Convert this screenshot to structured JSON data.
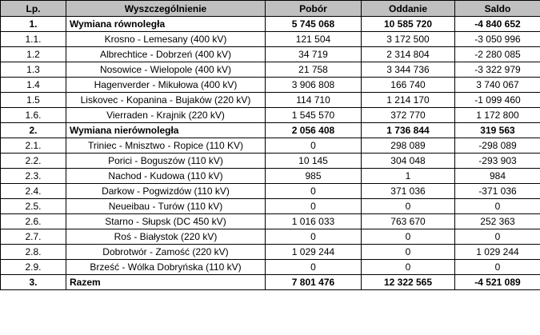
{
  "headers": {
    "lp": "Lp.",
    "name": "Wyszczególnienie",
    "pobor": "Pobór",
    "oddanie": "Oddanie",
    "saldo": "Saldo"
  },
  "rows": [
    {
      "lp": "1.",
      "name": "Wymiana równoległa",
      "pobor": "5 745 068",
      "oddanie": "10 585 720",
      "saldo": "-4 840 652",
      "group": true
    },
    {
      "lp": "1.1.",
      "name": "Krosno - Lemesany (400 kV)",
      "pobor": "121 504",
      "oddanie": "3 172 500",
      "saldo": "-3 050 996",
      "group": false
    },
    {
      "lp": "1.2",
      "name": "Albrechtice - Dobrzeń (400 kV)",
      "pobor": "34 719",
      "oddanie": "2 314 804",
      "saldo": "-2 280 085",
      "group": false
    },
    {
      "lp": "1.3",
      "name": "Nosowice - Wielopole (400 kV)",
      "pobor": "21 758",
      "oddanie": "3 344 736",
      "saldo": "-3 322 979",
      "group": false
    },
    {
      "lp": "1.4",
      "name": "Hagenverder - Mikułowa (400 kV)",
      "pobor": "3 906 808",
      "oddanie": "166 740",
      "saldo": "3 740 067",
      "group": false
    },
    {
      "lp": "1.5",
      "name": "Liskovec - Kopanina - Bujaków (220 kV)",
      "pobor": "114 710",
      "oddanie": "1 214 170",
      "saldo": "-1 099 460",
      "group": false
    },
    {
      "lp": "1.6.",
      "name": "Vierraden - Krajnik (220 kV)",
      "pobor": "1 545 570",
      "oddanie": "372 770",
      "saldo": "1 172 800",
      "group": false
    },
    {
      "lp": "2.",
      "name": "Wymiana nierównoległa",
      "pobor": "2 056 408",
      "oddanie": "1 736 844",
      "saldo": "319 563",
      "group": true
    },
    {
      "lp": "2.1.",
      "name": "Triniec - Mnisztwo - Ropice (110 KV)",
      "pobor": "0",
      "oddanie": "298 089",
      "saldo": "-298 089",
      "group": false
    },
    {
      "lp": "2.2.",
      "name": "Porici - Boguszów (110 kV)",
      "pobor": "10 145",
      "oddanie": "304 048",
      "saldo": "-293 903",
      "group": false
    },
    {
      "lp": "2.3.",
      "name": "Nachod - Kudowa (110 kV)",
      "pobor": "985",
      "oddanie": "1",
      "saldo": "984",
      "group": false
    },
    {
      "lp": "2.4.",
      "name": "Darkow - Pogwizdów (110 kV)",
      "pobor": "0",
      "oddanie": "371 036",
      "saldo": "-371 036",
      "group": false
    },
    {
      "lp": "2.5.",
      "name": "Neueibau - Turów (110 kV)",
      "pobor": "0",
      "oddanie": "0",
      "saldo": "0",
      "group": false
    },
    {
      "lp": "2.6.",
      "name": "Starno - Słupsk (DC 450 kV)",
      "pobor": "1 016 033",
      "oddanie": "763 670",
      "saldo": "252 363",
      "group": false
    },
    {
      "lp": "2.7.",
      "name": "Roś - Białystok (220 kV)",
      "pobor": "0",
      "oddanie": "0",
      "saldo": "0",
      "group": false
    },
    {
      "lp": "2.8.",
      "name": "Dobrotwór - Zamość (220 kV)",
      "pobor": "1 029 244",
      "oddanie": "0",
      "saldo": "1 029 244",
      "group": false
    },
    {
      "lp": "2.9.",
      "name": "Brześć - Wólka Dobryńska (110 kV)",
      "pobor": "0",
      "oddanie": "0",
      "saldo": "0",
      "group": false
    },
    {
      "lp": "3.",
      "name": "Razem",
      "pobor": "7 801 476",
      "oddanie": "12 322 565",
      "saldo": "-4 521 089",
      "group": true
    }
  ]
}
